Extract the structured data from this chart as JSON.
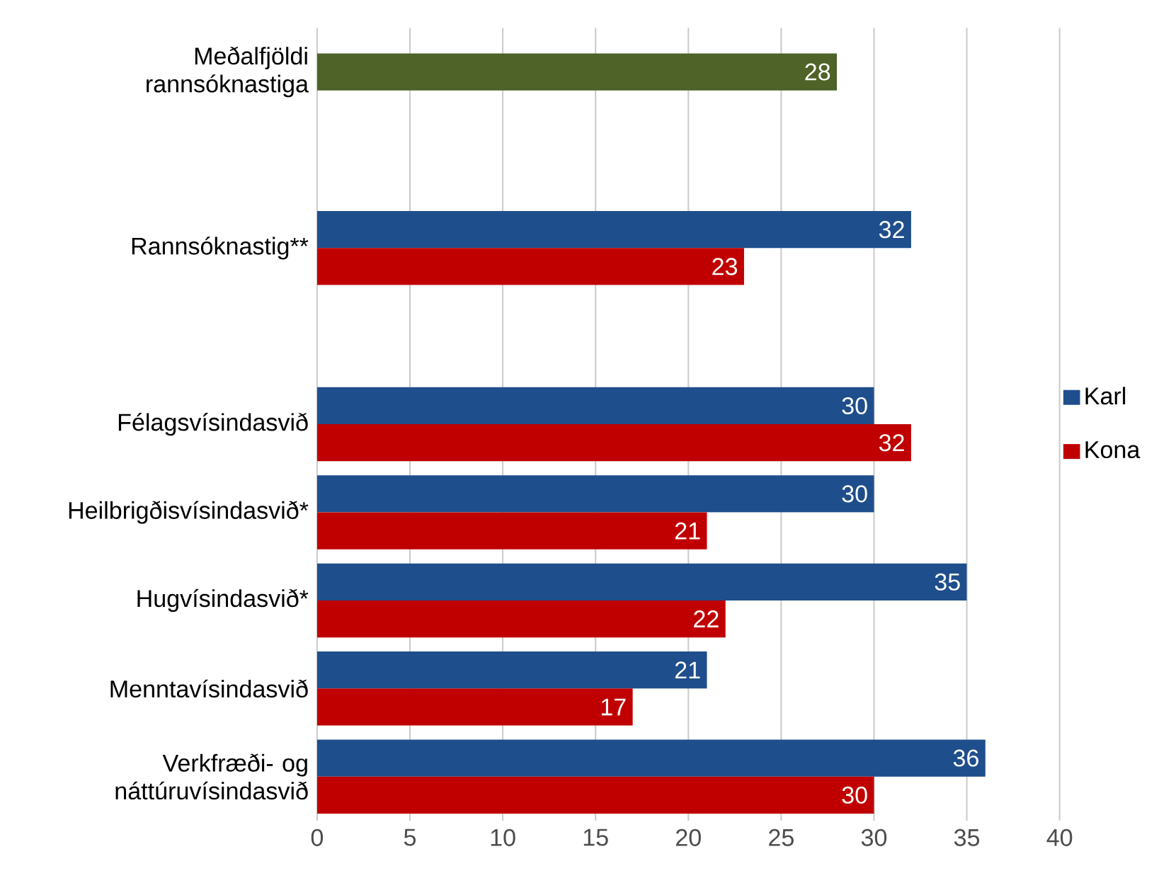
{
  "chart_data": {
    "type": "bar",
    "orientation": "horizontal",
    "categories": [
      "Meðalfjöldi rannsóknastiga",
      null,
      "Rannsóknastig**",
      null,
      "Félagsvísindasvið",
      "Heilbrigðisvísindasvið*",
      "Hugvísindasvið*",
      "Menntavísindasvið",
      "Verkfræði- og náttúruvísindasvið"
    ],
    "series": [
      {
        "name": "Karl",
        "color": "#1f4e8c",
        "values": [
          null,
          null,
          32,
          null,
          30,
          30,
          35,
          21,
          36
        ]
      },
      {
        "name": "Kona",
        "color": "#c00000",
        "values": [
          null,
          null,
          23,
          null,
          32,
          21,
          22,
          17,
          30
        ]
      },
      {
        "color": "#4f6228",
        "values": [
          28,
          null,
          null,
          null,
          null,
          null,
          null,
          null,
          null
        ]
      }
    ],
    "xlim": [
      0,
      40
    ],
    "xticks": [
      0,
      5,
      10,
      15,
      20,
      25,
      30,
      35,
      40
    ],
    "grid": "x",
    "legend": "right",
    "data_labels": true
  }
}
